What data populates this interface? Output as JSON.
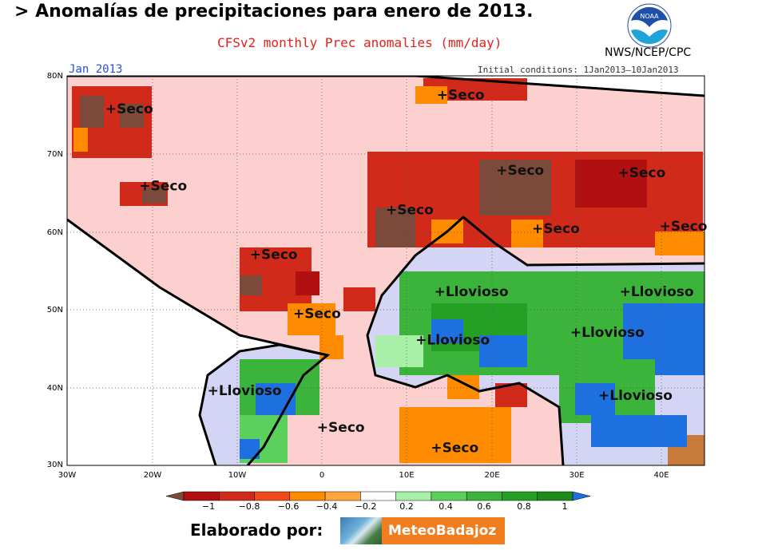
{
  "header": {
    "title": "> Anomalías de precipitaciones para enero de 2013.",
    "subtitle": "CFSv2 monthly Prec anomalies (mm/day)",
    "agency": "NWS/NCEP/CPC",
    "logo_text": "NOAA"
  },
  "map": {
    "period": "Jan 2013",
    "initial_conditions": "Initial conditions: 1Jan2013–10Jan2013",
    "lat_ticks": [
      "80N",
      "70N",
      "60N",
      "50N",
      "40N",
      "30N"
    ],
    "lon_ticks": [
      "30W",
      "20W",
      "10W",
      "0",
      "10E",
      "20E",
      "30E",
      "40E"
    ],
    "region_labels": [
      {
        "text": "+Seco",
        "lon": -25.5,
        "lat": 75.2
      },
      {
        "text": "+Seco",
        "lon": -21.5,
        "lat": 65.3
      },
      {
        "text": "+Seco",
        "lon": 13.5,
        "lat": 77.0
      },
      {
        "text": "+Seco",
        "lon": 7.5,
        "lat": 62.2
      },
      {
        "text": "+Seco",
        "lon": 20.5,
        "lat": 67.3
      },
      {
        "text": "+Seco",
        "lon": 34.8,
        "lat": 67.0
      },
      {
        "text": "+Seco",
        "lon": 24.7,
        "lat": 59.8
      },
      {
        "text": "+Seco",
        "lon": 39.7,
        "lat": 60.1
      },
      {
        "text": "+Seco",
        "lon": -8.5,
        "lat": 56.5
      },
      {
        "text": "+Seco",
        "lon": -3.4,
        "lat": 48.9
      },
      {
        "text": "+Llovioso",
        "lon": 13.2,
        "lat": 51.7
      },
      {
        "text": "+Llovioso",
        "lon": 35.0,
        "lat": 51.7
      },
      {
        "text": "+Llovioso",
        "lon": 29.2,
        "lat": 46.5
      },
      {
        "text": "+Llovioso",
        "lon": 11.0,
        "lat": 45.5
      },
      {
        "text": "+Llovioso",
        "lon": -13.5,
        "lat": 39.0
      },
      {
        "text": "+Llovioso",
        "lon": 32.5,
        "lat": 38.4
      },
      {
        "text": "+Seco",
        "lon": -0.6,
        "lat": 34.3
      },
      {
        "text": "+Seco",
        "lon": 12.8,
        "lat": 31.7
      }
    ]
  },
  "legend": {
    "tick_labels": [
      "−1",
      "−0.8",
      "−0.6",
      "−0.4",
      "−0.2",
      "0.2",
      "0.4",
      "0.6",
      "0.8",
      "1"
    ],
    "colors": [
      "#7b4a3a",
      "#b01010",
      "#d22a1a",
      "#f04a1a",
      "#ff8c00",
      "#ffa53a",
      "#ffffff",
      "#a8f0a8",
      "#5cd05c",
      "#3cb43c",
      "#24a024",
      "#1a8c1a",
      "#1e6fe0"
    ]
  },
  "footer": {
    "credit_label": "Elaborado por:",
    "brand_name": "MeteoBadajoz"
  }
}
